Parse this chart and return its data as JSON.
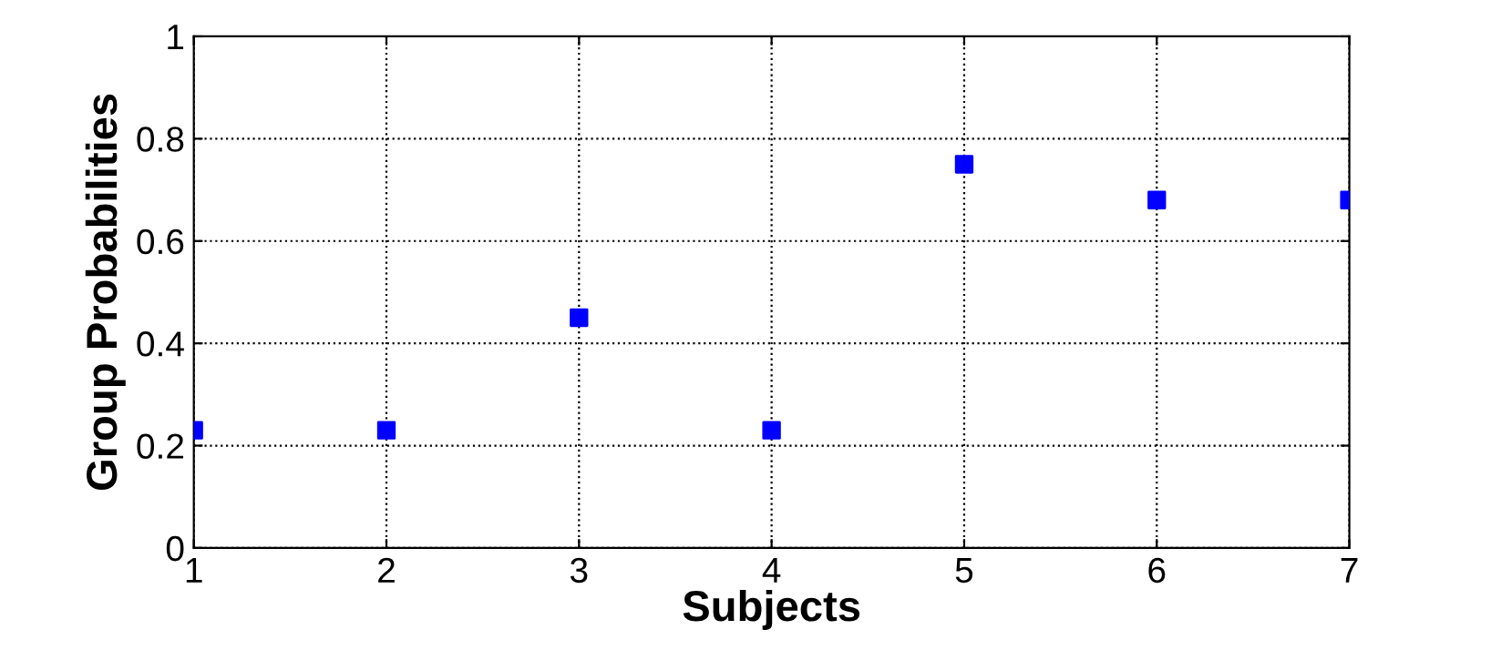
{
  "chart_data": {
    "type": "scatter",
    "xlabel": "Subjects",
    "ylabel": "Group Probabilities",
    "x": [
      1,
      2,
      3,
      4,
      5,
      6,
      7
    ],
    "series": [
      {
        "color": "#0000ff",
        "values": [
          0.23,
          0.23,
          0.45,
          0.23,
          0.75,
          0.68,
          0.68
        ]
      }
    ],
    "xlim": [
      1,
      7
    ],
    "ylim": [
      0,
      1
    ],
    "xticks": [
      1,
      2,
      3,
      4,
      5,
      6,
      7
    ],
    "yticks": [
      0,
      0.2,
      0.4,
      0.6,
      0.8,
      1
    ],
    "grid": true,
    "marker": "square"
  }
}
